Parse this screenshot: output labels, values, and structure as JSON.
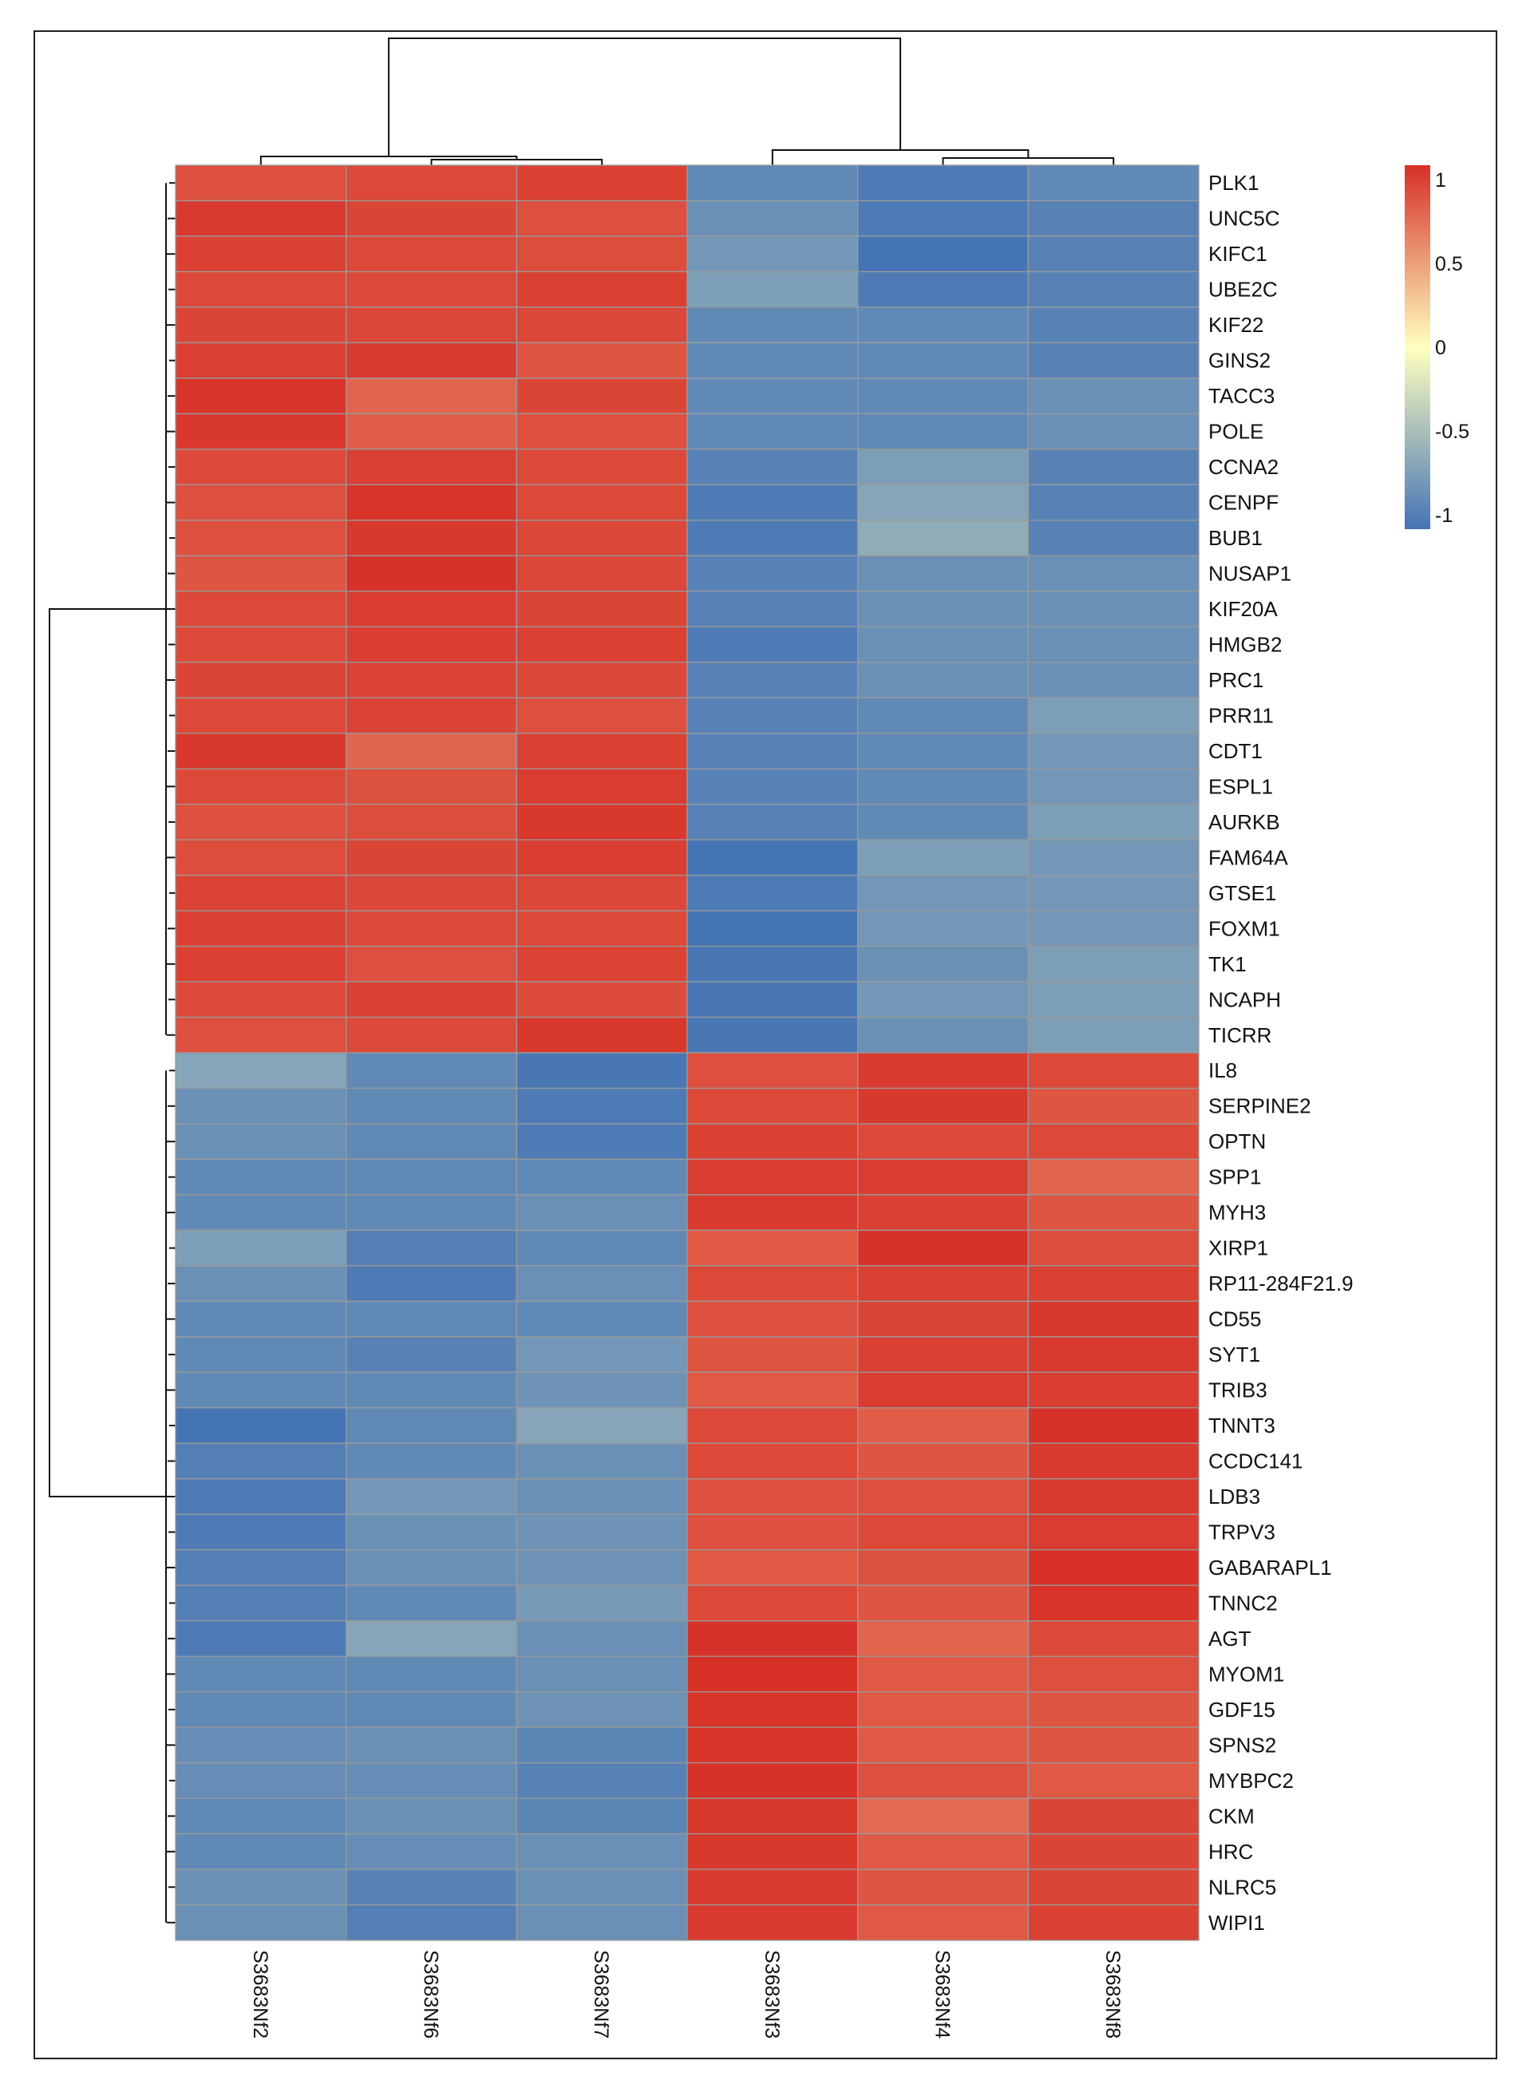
{
  "chart_data": {
    "type": "heatmap",
    "title": "",
    "samples": [
      "S3683Nf2",
      "S3683Nf6",
      "S3683Nf7",
      "S3683Nf3",
      "S3683Nf4",
      "S3683Nf8"
    ],
    "genes": [
      "PLK1",
      "UNC5C",
      "KIFC1",
      "UBE2C",
      "KIF22",
      "GINS2",
      "TACC3",
      "POLE",
      "CCNA2",
      "CENPF",
      "BUB1",
      "NUSAP1",
      "KIF20A",
      "HMGB2",
      "PRC1",
      "PRR11",
      "CDT1",
      "ESPL1",
      "AURKB",
      "FAM64A",
      "GTSE1",
      "FOXM1",
      "TK1",
      "NCAPH",
      "TICRR",
      "IL8",
      "SERPINE2",
      "OPTN",
      "SPP1",
      "MYH3",
      "XIRP1",
      "RP11-284F21.9",
      "CD55",
      "SYT1",
      "TRIB3",
      "TNNT3",
      "CCDC141",
      "LDB3",
      "TRPV3",
      "GABARAPL1",
      "TNNC2",
      "AGT",
      "MYOM1",
      "GDF15",
      "SPNS2",
      "MYBPC2",
      "CKM",
      "HRC",
      "NLRC5",
      "WIPI1"
    ],
    "values": [
      [
        0.85,
        0.88,
        0.92,
        -0.85,
        -0.95,
        -0.85
      ],
      [
        0.95,
        0.9,
        0.85,
        -0.8,
        -0.95,
        -0.9
      ],
      [
        0.92,
        0.88,
        0.86,
        -0.75,
        -1.0,
        -0.9
      ],
      [
        0.88,
        0.88,
        0.92,
        -0.7,
        -0.95,
        -0.9
      ],
      [
        0.9,
        0.89,
        0.89,
        -0.85,
        -0.85,
        -0.9
      ],
      [
        0.92,
        0.95,
        0.82,
        -0.85,
        -0.85,
        -0.9
      ],
      [
        0.98,
        0.75,
        0.9,
        -0.85,
        -0.85,
        -0.8
      ],
      [
        0.96,
        0.78,
        0.85,
        -0.85,
        -0.85,
        -0.8
      ],
      [
        0.88,
        0.92,
        0.88,
        -0.9,
        -0.7,
        -0.9
      ],
      [
        0.85,
        0.98,
        0.88,
        -0.95,
        -0.65,
        -0.9
      ],
      [
        0.85,
        0.96,
        0.89,
        -0.95,
        -0.6,
        -0.9
      ],
      [
        0.82,
        0.99,
        0.89,
        -0.9,
        -0.8,
        -0.8
      ],
      [
        0.88,
        0.94,
        0.9,
        -0.9,
        -0.8,
        -0.8
      ],
      [
        0.88,
        0.93,
        0.92,
        -0.95,
        -0.8,
        -0.8
      ],
      [
        0.9,
        0.91,
        0.89,
        -0.9,
        -0.8,
        -0.8
      ],
      [
        0.88,
        0.91,
        0.85,
        -0.9,
        -0.85,
        -0.7
      ],
      [
        0.96,
        0.74,
        0.92,
        -0.9,
        -0.85,
        -0.75
      ],
      [
        0.88,
        0.84,
        0.94,
        -0.9,
        -0.85,
        -0.75
      ],
      [
        0.85,
        0.86,
        0.96,
        -0.9,
        -0.85,
        -0.7
      ],
      [
        0.86,
        0.9,
        0.93,
        -1.0,
        -0.7,
        -0.75
      ],
      [
        0.91,
        0.89,
        0.89,
        -0.95,
        -0.75,
        -0.75
      ],
      [
        0.92,
        0.88,
        0.88,
        -1.0,
        -0.75,
        -0.75
      ],
      [
        0.92,
        0.85,
        0.91,
        -0.98,
        -0.8,
        -0.7
      ],
      [
        0.88,
        0.92,
        0.87,
        -0.98,
        -0.75,
        -0.7
      ],
      [
        0.85,
        0.88,
        0.96,
        -0.98,
        -0.8,
        -0.7
      ],
      [
        -0.65,
        -0.85,
        -0.98,
        0.85,
        0.95,
        0.88
      ],
      [
        -0.8,
        -0.85,
        -0.95,
        0.88,
        0.96,
        0.82
      ],
      [
        -0.8,
        -0.85,
        -0.95,
        0.92,
        0.88,
        0.88
      ],
      [
        -0.85,
        -0.85,
        -0.85,
        0.94,
        0.94,
        0.75
      ],
      [
        -0.85,
        -0.85,
        -0.8,
        0.95,
        0.92,
        0.82
      ],
      [
        -0.7,
        -0.92,
        -0.85,
        0.8,
        0.99,
        0.86
      ],
      [
        -0.8,
        -0.95,
        -0.8,
        0.88,
        0.92,
        0.92
      ],
      [
        -0.85,
        -0.85,
        -0.85,
        0.85,
        0.9,
        0.96
      ],
      [
        -0.85,
        -0.9,
        -0.75,
        0.82,
        0.92,
        0.95
      ],
      [
        -0.85,
        -0.85,
        -0.78,
        0.8,
        0.94,
        0.93
      ],
      [
        -1.0,
        -0.85,
        -0.65,
        0.88,
        0.78,
        0.99
      ],
      [
        -0.92,
        -0.85,
        -0.8,
        0.88,
        0.82,
        0.95
      ],
      [
        -0.95,
        -0.75,
        -0.8,
        0.85,
        0.85,
        0.95
      ],
      [
        -0.95,
        -0.8,
        -0.78,
        0.85,
        0.88,
        0.94
      ],
      [
        -0.92,
        -0.8,
        -0.78,
        0.8,
        0.84,
        1.0
      ],
      [
        -0.92,
        -0.85,
        -0.72,
        0.88,
        0.82,
        0.98
      ],
      [
        -0.95,
        -0.65,
        -0.8,
        0.99,
        0.75,
        0.88
      ],
      [
        -0.85,
        -0.85,
        -0.8,
        1.0,
        0.8,
        0.85
      ],
      [
        -0.85,
        -0.85,
        -0.78,
        0.98,
        0.8,
        0.82
      ],
      [
        -0.82,
        -0.8,
        -0.88,
        0.98,
        0.8,
        0.82
      ],
      [
        -0.82,
        -0.82,
        -0.9,
        0.99,
        0.85,
        0.8
      ],
      [
        -0.85,
        -0.8,
        -0.88,
        0.96,
        0.72,
        0.9
      ],
      [
        -0.85,
        -0.82,
        -0.8,
        0.96,
        0.8,
        0.9
      ],
      [
        -0.8,
        -0.9,
        -0.8,
        0.95,
        0.82,
        0.9
      ],
      [
        -0.8,
        -0.92,
        -0.8,
        0.95,
        0.8,
        0.92
      ]
    ],
    "color_scale": {
      "min": -1,
      "max": 1,
      "stops": [
        {
          "value": -1,
          "color": "#4574b4"
        },
        {
          "value": 0,
          "color": "#ffffbf"
        },
        {
          "value": 1,
          "color": "#d73027"
        }
      ]
    },
    "legend": {
      "ticks": [
        "1",
        "0.5",
        "0",
        "-0.5",
        "-1"
      ],
      "tick_values": [
        1,
        0.5,
        0,
        -0.5,
        -1
      ],
      "placement": "top-right"
    },
    "column_dendrogram": true,
    "row_dendrogram": true,
    "column_clusters": [
      [
        "S3683Nf2",
        "S3683Nf6",
        "S3683Nf7"
      ],
      [
        "S3683Nf3",
        "S3683Nf4",
        "S3683Nf8"
      ]
    ],
    "row_clusters": [
      [
        "PLK1",
        "UNC5C",
        "KIFC1",
        "UBE2C",
        "KIF22",
        "GINS2",
        "TACC3",
        "POLE",
        "CCNA2",
        "CENPF",
        "BUB1",
        "NUSAP1",
        "KIF20A",
        "HMGB2",
        "PRC1",
        "PRR11",
        "CDT1",
        "ESPL1",
        "AURKB",
        "FAM64A",
        "GTSE1",
        "FOXM1",
        "TK1",
        "NCAPH",
        "TICRR"
      ],
      [
        "IL8",
        "SERPINE2",
        "OPTN",
        "SPP1",
        "MYH3",
        "XIRP1",
        "RP11-284F21.9",
        "CD55",
        "SYT1",
        "TRIB3",
        "TNNT3",
        "CCDC141",
        "LDB3",
        "TRPV3",
        "GABARAPL1",
        "TNNC2",
        "AGT",
        "MYOM1",
        "GDF15",
        "SPNS2",
        "MYBPC2",
        "CKM",
        "HRC",
        "NLRC5",
        "WIPI1"
      ]
    ]
  }
}
